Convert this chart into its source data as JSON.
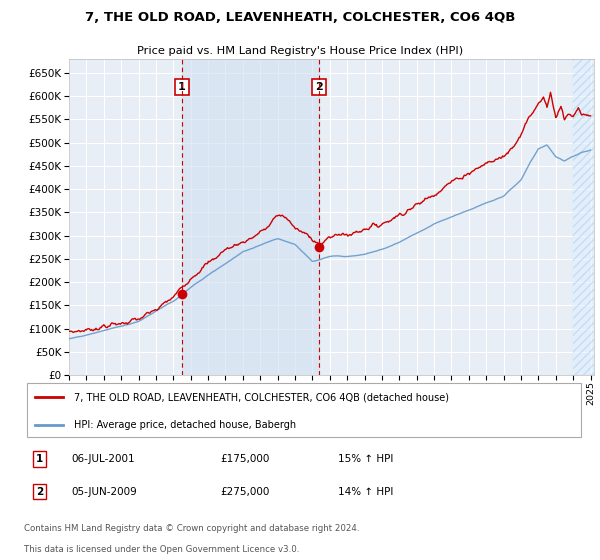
{
  "title": "7, THE OLD ROAD, LEAVENHEATH, COLCHESTER, CO6 4QB",
  "subtitle": "Price paid vs. HM Land Registry's House Price Index (HPI)",
  "legend_line1": "7, THE OLD ROAD, LEAVENHEATH, COLCHESTER, CO6 4QB (detached house)",
  "legend_line2": "HPI: Average price, detached house, Babergh",
  "footer1": "Contains HM Land Registry data © Crown copyright and database right 2024.",
  "footer2": "This data is licensed under the Open Government Licence v3.0.",
  "sale1_date": "06-JUL-2001",
  "sale1_price": "£175,000",
  "sale1_hpi": "15% ↑ HPI",
  "sale2_date": "05-JUN-2009",
  "sale2_price": "£275,000",
  "sale2_hpi": "14% ↑ HPI",
  "sale1_x": 2001.5,
  "sale1_y": 175000,
  "sale2_x": 2009.4,
  "sale2_y": 275000,
  "red_color": "#cc0000",
  "blue_color": "#99bbdd",
  "blue_line_color": "#6699cc",
  "vline_color": "#cc0000",
  "bg_plot": "#e8eef5",
  "grid_color": "#ffffff",
  "shade_color": "#d0dff0",
  "ylim_max": 680000,
  "xlim_start": 1995.0,
  "xlim_end": 2025.2,
  "yticks": [
    0,
    50000,
    100000,
    150000,
    200000,
    250000,
    300000,
    350000,
    400000,
    450000,
    500000,
    550000,
    600000,
    650000
  ],
  "xticks": [
    1995,
    1996,
    1997,
    1998,
    1999,
    2000,
    2001,
    2002,
    2003,
    2004,
    2005,
    2006,
    2007,
    2008,
    2009,
    2010,
    2011,
    2012,
    2013,
    2014,
    2015,
    2016,
    2017,
    2018,
    2019,
    2020,
    2021,
    2022,
    2023,
    2024,
    2025
  ]
}
